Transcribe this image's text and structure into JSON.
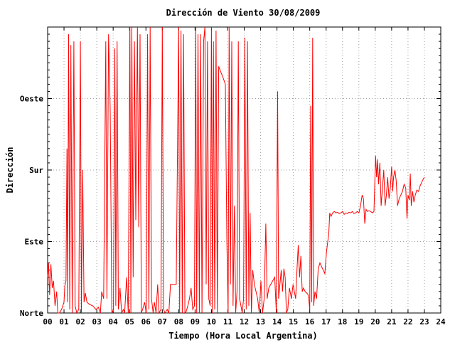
{
  "chart_data": {
    "type": "line",
    "title": "Dirección de Viento 30/08/2009",
    "xlabel": "Tiempo (Hora Local Argentina)",
    "ylabel": "Dirección",
    "xlim": [
      0,
      24
    ],
    "ylim": [
      0,
      400
    ],
    "x_ticks": [
      "00",
      "01",
      "02",
      "03",
      "04",
      "05",
      "06",
      "07",
      "08",
      "09",
      "10",
      "11",
      "12",
      "13",
      "14",
      "15",
      "16",
      "17",
      "18",
      "19",
      "20",
      "21",
      "22",
      "23",
      "24"
    ],
    "y_ticks": [
      {
        "value": 0,
        "label": "Norte"
      },
      {
        "value": 100,
        "label": "Este"
      },
      {
        "value": 200,
        "label": "Sur"
      },
      {
        "value": 300,
        "label": "Oeste"
      }
    ],
    "grid": true,
    "colors": {
      "series": "#ff0000",
      "grid": "#a0a0a0",
      "axis": "#000000"
    },
    "series": [
      {
        "points": [
          [
            0.0,
            50
          ],
          [
            0.05,
            70
          ],
          [
            0.12,
            25
          ],
          [
            0.2,
            68
          ],
          [
            0.28,
            35
          ],
          [
            0.36,
            45
          ],
          [
            0.45,
            10
          ],
          [
            0.55,
            30
          ],
          [
            0.62,
            0
          ],
          [
            0.72,
            0
          ],
          [
            0.85,
            5
          ],
          [
            1.0,
            15
          ],
          [
            1.05,
            38
          ],
          [
            1.12,
            45
          ],
          [
            1.18,
            230
          ],
          [
            1.22,
            15
          ],
          [
            1.28,
            390
          ],
          [
            1.35,
            5
          ],
          [
            1.42,
            375
          ],
          [
            1.5,
            0
          ],
          [
            1.6,
            380
          ],
          [
            1.68,
            10
          ],
          [
            1.78,
            0
          ],
          [
            1.9,
            5
          ],
          [
            2.0,
            380
          ],
          [
            2.06,
            0
          ],
          [
            2.14,
            200
          ],
          [
            2.22,
            15
          ],
          [
            2.3,
            28
          ],
          [
            2.4,
            15
          ],
          [
            2.55,
            12
          ],
          [
            2.75,
            10
          ],
          [
            2.95,
            5
          ],
          [
            3.1,
            8
          ],
          [
            3.22,
            0
          ],
          [
            3.3,
            30
          ],
          [
            3.42,
            20
          ],
          [
            3.55,
            380
          ],
          [
            3.62,
            20
          ],
          [
            3.72,
            390
          ],
          [
            3.82,
            285
          ],
          [
            3.92,
            0
          ],
          [
            4.02,
            5
          ],
          [
            4.1,
            370
          ],
          [
            4.16,
            10
          ],
          [
            4.24,
            380
          ],
          [
            4.32,
            5
          ],
          [
            4.42,
            35
          ],
          [
            4.52,
            0
          ],
          [
            4.62,
            5
          ],
          [
            4.7,
            0
          ],
          [
            4.82,
            50
          ],
          [
            4.92,
            0
          ],
          [
            5.02,
            400
          ],
          [
            5.08,
            0
          ],
          [
            5.14,
            400
          ],
          [
            5.22,
            50
          ],
          [
            5.3,
            380
          ],
          [
            5.38,
            130
          ],
          [
            5.48,
            400
          ],
          [
            5.56,
            120
          ],
          [
            5.64,
            390
          ],
          [
            5.72,
            0
          ],
          [
            5.8,
            5
          ],
          [
            5.92,
            15
          ],
          [
            6.02,
            0
          ],
          [
            6.1,
            390
          ],
          [
            6.18,
            5
          ],
          [
            6.26,
            400
          ],
          [
            6.34,
            20
          ],
          [
            6.44,
            0
          ],
          [
            6.52,
            15
          ],
          [
            6.62,
            0
          ],
          [
            6.72,
            40
          ],
          [
            6.8,
            0
          ],
          [
            6.92,
            5
          ],
          [
            7.0,
            400
          ],
          [
            7.08,
            5
          ],
          [
            7.16,
            0
          ],
          [
            7.3,
            5
          ],
          [
            7.4,
            0
          ],
          [
            7.5,
            40
          ],
          [
            7.7,
            40
          ],
          [
            7.85,
            40
          ],
          [
            8.0,
            400
          ],
          [
            8.06,
            0
          ],
          [
            8.14,
            395
          ],
          [
            8.22,
            0
          ],
          [
            8.3,
            390
          ],
          [
            8.38,
            0
          ],
          [
            8.46,
            2
          ],
          [
            8.56,
            10
          ],
          [
            8.66,
            20
          ],
          [
            8.76,
            35
          ],
          [
            8.86,
            5
          ],
          [
            8.96,
            10
          ],
          [
            9.04,
            400
          ],
          [
            9.1,
            0
          ],
          [
            9.18,
            390
          ],
          [
            9.26,
            0
          ],
          [
            9.34,
            390
          ],
          [
            9.42,
            0
          ],
          [
            9.52,
            380
          ],
          [
            9.6,
            400
          ],
          [
            9.68,
            40
          ],
          [
            9.76,
            380
          ],
          [
            9.84,
            20
          ],
          [
            9.92,
            10
          ],
          [
            10.0,
            400
          ],
          [
            10.06,
            0
          ],
          [
            10.12,
            380
          ],
          [
            10.2,
            5
          ],
          [
            10.28,
            395
          ],
          [
            10.36,
            0
          ],
          [
            10.44,
            345
          ],
          [
            10.52,
            340
          ],
          [
            10.7,
            330
          ],
          [
            10.85,
            320
          ],
          [
            10.94,
            100
          ],
          [
            11.02,
            0
          ],
          [
            11.08,
            400
          ],
          [
            11.16,
            40
          ],
          [
            11.24,
            380
          ],
          [
            11.32,
            10
          ],
          [
            11.4,
            150
          ],
          [
            11.48,
            0
          ],
          [
            11.56,
            30
          ],
          [
            11.64,
            380
          ],
          [
            11.72,
            20
          ],
          [
            11.8,
            10
          ],
          [
            11.88,
            0
          ],
          [
            11.96,
            20
          ],
          [
            12.04,
            385
          ],
          [
            12.12,
            5
          ],
          [
            12.2,
            380
          ],
          [
            12.28,
            10
          ],
          [
            12.36,
            140
          ],
          [
            12.44,
            0
          ],
          [
            12.52,
            60
          ],
          [
            12.62,
            40
          ],
          [
            12.72,
            30
          ],
          [
            12.82,
            20
          ],
          [
            12.92,
            0
          ],
          [
            13.02,
            45
          ],
          [
            13.12,
            0
          ],
          [
            13.22,
            20
          ],
          [
            13.32,
            125
          ],
          [
            13.4,
            20
          ],
          [
            13.5,
            35
          ],
          [
            13.62,
            40
          ],
          [
            13.74,
            45
          ],
          [
            13.86,
            50
          ],
          [
            13.96,
            0
          ],
          [
            14.04,
            310
          ],
          [
            14.1,
            20
          ],
          [
            14.18,
            40
          ],
          [
            14.26,
            60
          ],
          [
            14.34,
            30
          ],
          [
            14.42,
            62
          ],
          [
            14.5,
            50
          ],
          [
            14.58,
            0
          ],
          [
            14.66,
            5
          ],
          [
            14.76,
            35
          ],
          [
            14.88,
            20
          ],
          [
            14.98,
            40
          ],
          [
            15.06,
            30
          ],
          [
            15.14,
            20
          ],
          [
            15.22,
            60
          ],
          [
            15.3,
            95
          ],
          [
            15.38,
            50
          ],
          [
            15.46,
            80
          ],
          [
            15.54,
            30
          ],
          [
            15.62,
            35
          ],
          [
            15.72,
            30
          ],
          [
            15.82,
            28
          ],
          [
            15.92,
            25
          ],
          [
            16.0,
            5
          ],
          [
            16.06,
            290
          ],
          [
            16.12,
            15
          ],
          [
            16.18,
            385
          ],
          [
            16.24,
            10
          ],
          [
            16.32,
            30
          ],
          [
            16.42,
            20
          ],
          [
            16.52,
            62
          ],
          [
            16.62,
            70
          ],
          [
            16.72,
            65
          ],
          [
            16.82,
            60
          ],
          [
            16.92,
            55
          ],
          [
            17.02,
            85
          ],
          [
            17.1,
            100
          ],
          [
            17.16,
            110
          ],
          [
            17.22,
            140
          ],
          [
            17.3,
            135
          ],
          [
            17.4,
            140
          ],
          [
            17.5,
            142
          ],
          [
            17.6,
            140
          ],
          [
            17.7,
            141
          ],
          [
            17.8,
            139
          ],
          [
            17.9,
            140
          ],
          [
            18.0,
            142
          ],
          [
            18.1,
            138
          ],
          [
            18.2,
            140
          ],
          [
            18.3,
            139
          ],
          [
            18.4,
            141
          ],
          [
            18.5,
            140
          ],
          [
            18.6,
            142
          ],
          [
            18.7,
            139
          ],
          [
            18.8,
            140
          ],
          [
            18.9,
            142
          ],
          [
            19.0,
            140
          ],
          [
            19.1,
            150
          ],
          [
            19.2,
            165
          ],
          [
            19.28,
            160
          ],
          [
            19.36,
            125
          ],
          [
            19.44,
            145
          ],
          [
            19.52,
            142
          ],
          [
            19.62,
            143
          ],
          [
            19.72,
            142
          ],
          [
            19.82,
            140
          ],
          [
            19.92,
            142
          ],
          [
            20.02,
            220
          ],
          [
            20.08,
            190
          ],
          [
            20.14,
            215
          ],
          [
            20.2,
            180
          ],
          [
            20.28,
            210
          ],
          [
            20.36,
            150
          ],
          [
            20.44,
            175
          ],
          [
            20.52,
            200
          ],
          [
            20.6,
            150
          ],
          [
            20.68,
            165
          ],
          [
            20.76,
            190
          ],
          [
            20.84,
            160
          ],
          [
            20.92,
            175
          ],
          [
            21.0,
            205
          ],
          [
            21.06,
            170
          ],
          [
            21.12,
            190
          ],
          [
            21.2,
            200
          ],
          [
            21.28,
            185
          ],
          [
            21.36,
            150
          ],
          [
            21.46,
            160
          ],
          [
            21.56,
            165
          ],
          [
            21.66,
            170
          ],
          [
            21.76,
            180
          ],
          [
            21.86,
            175
          ],
          [
            21.94,
            132
          ],
          [
            22.0,
            165
          ],
          [
            22.08,
            158
          ],
          [
            22.14,
            195
          ],
          [
            22.2,
            150
          ],
          [
            22.28,
            170
          ],
          [
            22.36,
            155
          ],
          [
            22.44,
            165
          ],
          [
            22.54,
            172
          ],
          [
            22.64,
            170
          ],
          [
            22.74,
            178
          ],
          [
            22.84,
            183
          ],
          [
            22.94,
            188
          ],
          [
            23.0,
            190
          ]
        ]
      }
    ]
  }
}
